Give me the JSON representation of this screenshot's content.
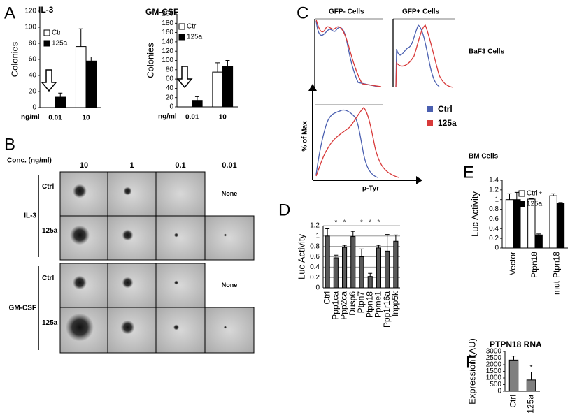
{
  "panel_labels": [
    "A",
    "B",
    "C",
    "D",
    "E",
    "F"
  ],
  "chart_data": [
    {
      "type": "bar",
      "title": "IL-3",
      "x_label": "ng/ml",
      "y_label": "Colonies",
      "categories": [
        "0.01",
        "10"
      ],
      "series": [
        {
          "name": "Ctrl",
          "color": "#ffffff",
          "values": [
            0,
            76
          ],
          "errors": [
            null,
            22
          ]
        },
        {
          "name": "125a",
          "color": "#000000",
          "values": [
            13,
            58
          ],
          "errors": [
            5,
            5
          ]
        }
      ],
      "ylim": [
        0,
        120
      ],
      "yticks": [
        0,
        20,
        40,
        60,
        80,
        100,
        120
      ],
      "grid": false
    },
    {
      "type": "bar",
      "title": "GM-CSF",
      "x_label": "ng/ml",
      "y_label": "Colonies",
      "categories": [
        "0.01",
        "10"
      ],
      "series": [
        {
          "name": "Ctrl",
          "color": "#ffffff",
          "values": [
            0,
            75
          ],
          "errors": [
            null,
            20
          ]
        },
        {
          "name": "125a",
          "color": "#000000",
          "values": [
            14,
            87
          ],
          "errors": [
            8,
            13
          ]
        }
      ],
      "ylim": [
        0,
        200
      ],
      "yticks": [
        0,
        20,
        40,
        60,
        80,
        100,
        120,
        140,
        160,
        180,
        200
      ],
      "grid": false
    },
    {
      "type": "bar",
      "y_label": "Luc Activity",
      "categories": [
        "Ctrl",
        "Ppp1ca",
        "Ppp2ca",
        "Dusp6",
        "Ptpn7",
        "Ptpn18",
        "Ppme1",
        "Ppp1r16a",
        "Inpp5k"
      ],
      "values": [
        1,
        0.58,
        0.78,
        0.99,
        0.6,
        0.22,
        0.77,
        0.71,
        0.9
      ],
      "errors": [
        0.14,
        0.05,
        0.04,
        0.1,
        0.15,
        0.06,
        0.05,
        0.32,
        0.12
      ],
      "markers": [
        null,
        "*",
        "*",
        null,
        "*",
        "*",
        "*",
        null,
        null
      ],
      "color": "#595959",
      "ylim": [
        0,
        1.2
      ],
      "yticks": [
        0,
        0.2,
        0.4,
        0.6,
        0.8,
        1,
        1.2
      ],
      "grid": true
    },
    {
      "type": "bar",
      "y_label": "Luc Activity",
      "categories": [
        "Vector",
        "Ptpn18",
        "mut-Ptpn18"
      ],
      "series": [
        {
          "name": "Ctrl",
          "color": "#ffffff",
          "values": [
            1,
            1.01,
            1.08
          ],
          "errors": [
            0.12,
            0.01,
            0.04
          ]
        },
        {
          "name": "125a",
          "color": "#000000",
          "values": [
            1,
            0.27,
            0.93
          ],
          "errors": [
            0.15,
            0.02,
            0.01
          ]
        }
      ],
      "markers": [
        null,
        "*",
        null
      ],
      "ylim": [
        0,
        1.4
      ],
      "yticks": [
        0,
        0.2,
        0.4,
        0.6,
        0.8,
        1,
        1.2,
        1.4
      ],
      "grid": false
    },
    {
      "type": "bar",
      "title": "PTPN18 RNA",
      "y_label": "Expression (AU)",
      "categories": [
        "Ctrl",
        "125a"
      ],
      "values": [
        2350,
        850
      ],
      "errors": [
        300,
        600
      ],
      "markers": [
        null,
        "*"
      ],
      "color": "#7f7f7f",
      "ylim": [
        0,
        3000
      ],
      "yticks": [
        0,
        500,
        1000,
        1500,
        2000,
        2500,
        3000
      ],
      "grid": false
    }
  ],
  "colony_assay": {
    "conc_label": "Conc. (ng/ml)",
    "concentrations": [
      "10",
      "1",
      "0.1",
      "0.01"
    ],
    "groups": [
      {
        "name": "IL-3",
        "rows": [
          {
            "label": "Ctrl",
            "empty": "None"
          },
          {
            "label": "125a"
          }
        ]
      },
      {
        "name": "GM-CSF",
        "rows": [
          {
            "label": "Ctrl",
            "empty": "None"
          },
          {
            "label": "125a"
          }
        ]
      }
    ]
  },
  "flow": {
    "columns": [
      "GFP-  Cells",
      "GFP+ Cells"
    ],
    "rows": [
      "BaF3 Cells",
      "BM Cells"
    ],
    "y_label": "% of Max",
    "x_label": "p-Tyr",
    "legend": [
      {
        "name": "Ctrl",
        "color": "#4a5fb0"
      },
      {
        "name": "125a",
        "color": "#d83a3a"
      }
    ]
  }
}
